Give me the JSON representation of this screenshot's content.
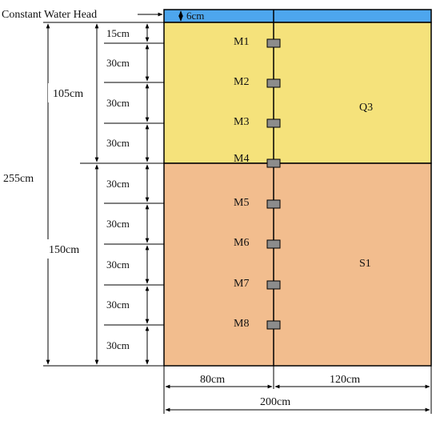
{
  "colors": {
    "water": "#4da6ee",
    "layer_top": "#f5e27b",
    "layer_bottom": "#f2bd8e",
    "sensor": "#8c8c8c",
    "line": "#000000"
  },
  "labels": {
    "water_head": "Constant Water Head",
    "water_depth": "6cm",
    "layer_top": "Q3",
    "layer_bottom": "S1",
    "total_height": "255cm",
    "top_height": "105cm",
    "bottom_height": "150cm",
    "width_left": "80cm",
    "width_right": "120cm",
    "width_total": "200cm"
  },
  "spacing_labels": [
    "15cm",
    "30cm",
    "30cm",
    "30cm",
    "30cm",
    "30cm",
    "30cm",
    "30cm",
    "30cm"
  ],
  "sensors": [
    "M1",
    "M2",
    "M3",
    "M4",
    "M5",
    "M6",
    "M7",
    "M8"
  ]
}
